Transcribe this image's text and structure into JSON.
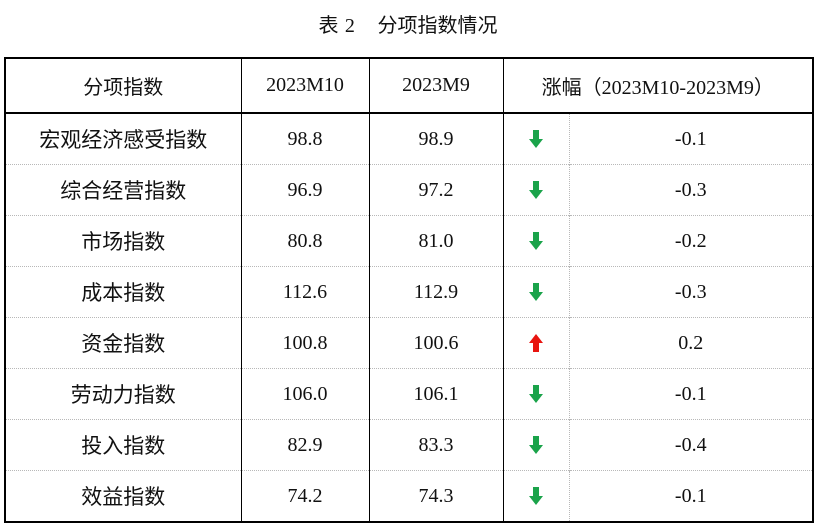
{
  "caption": {
    "prefix": "表",
    "number": "2",
    "title": "分项指数情况"
  },
  "columns": {
    "name": "分项指数",
    "m10": "2023M10",
    "m9": "2023M9",
    "change_prefix": "涨幅",
    "change_range": "（2023M10-2023M9）"
  },
  "colors": {
    "up": "#e8140f",
    "down": "#1aa34a"
  },
  "rows": [
    {
      "name": "宏观经济感受指数",
      "m10": "98.8",
      "m9": "98.9",
      "direction": "down",
      "change": "-0.1"
    },
    {
      "name": "综合经营指数",
      "m10": "96.9",
      "m9": "97.2",
      "direction": "down",
      "change": "-0.3"
    },
    {
      "name": "市场指数",
      "m10": "80.8",
      "m9": "81.0",
      "direction": "down",
      "change": "-0.2"
    },
    {
      "name": "成本指数",
      "m10": "112.6",
      "m9": "112.9",
      "direction": "down",
      "change": "-0.3"
    },
    {
      "name": "资金指数",
      "m10": "100.8",
      "m9": "100.6",
      "direction": "up",
      "change": "0.2"
    },
    {
      "name": "劳动力指数",
      "m10": "106.0",
      "m9": "106.1",
      "direction": "down",
      "change": "-0.1"
    },
    {
      "name": "投入指数",
      "m10": "82.9",
      "m9": "83.3",
      "direction": "down",
      "change": "-0.4"
    },
    {
      "name": "效益指数",
      "m10": "74.2",
      "m9": "74.3",
      "direction": "down",
      "change": "-0.1"
    }
  ]
}
